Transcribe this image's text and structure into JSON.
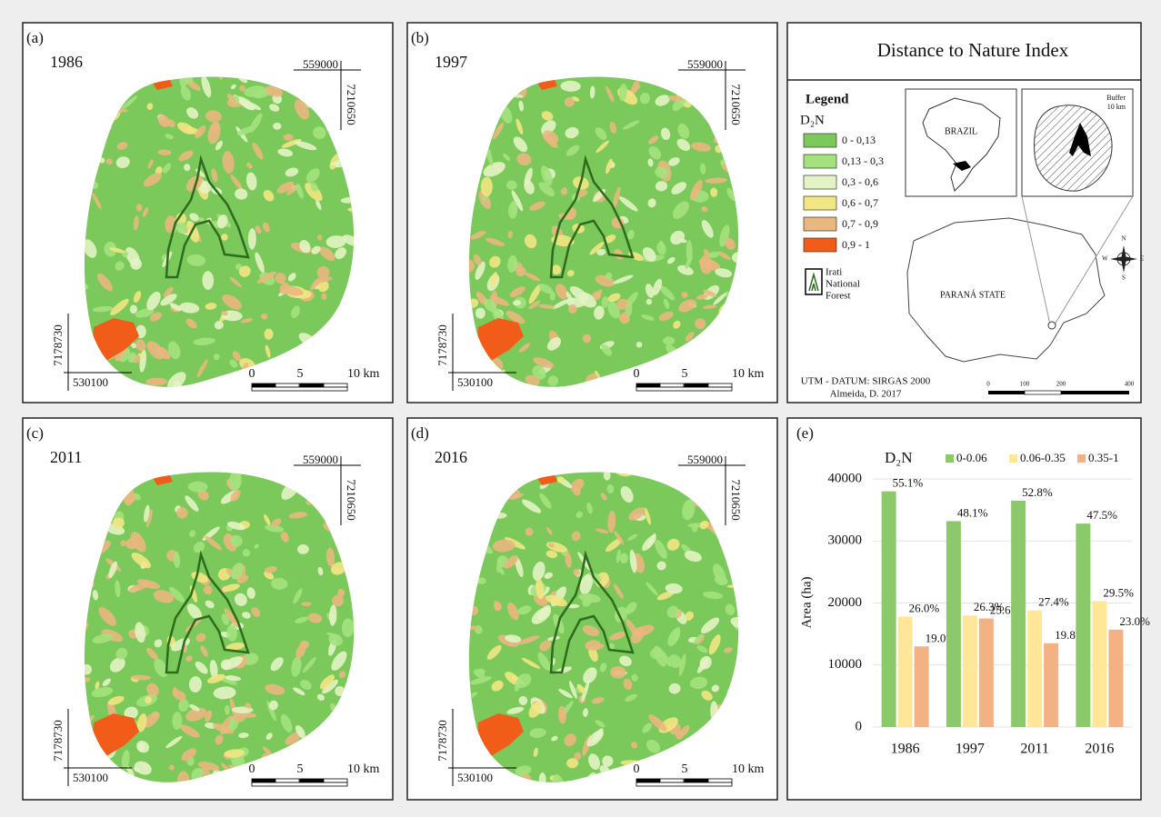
{
  "maps": [
    {
      "label": "(a)",
      "year": "1986",
      "east": "559000",
      "north": "7210650",
      "south": "7178730",
      "west": "530100",
      "scale": [
        "0",
        "5",
        "10 km"
      ]
    },
    {
      "label": "(b)",
      "year": "1997",
      "east": "559000",
      "north": "7210650",
      "south": "7178730",
      "west": "530100",
      "scale": [
        "0",
        "5",
        "10 km"
      ]
    },
    {
      "label": "(c)",
      "year": "2011",
      "east": "559000",
      "north": "7210650",
      "south": "7178730",
      "west": "530100",
      "scale": [
        "0",
        "5",
        "10 km"
      ]
    },
    {
      "label": "(d)",
      "year": "2016",
      "east": "559000",
      "north": "7210650",
      "south": "7178730",
      "west": "530100",
      "scale": [
        "0",
        "5",
        "10 km"
      ]
    }
  ],
  "legend_panel": {
    "title": "Distance to Nature Index",
    "legend_title": "Legend",
    "index_name": "D₂N",
    "classes": [
      {
        "label": "0 - 0,13",
        "color": "#7cc95b"
      },
      {
        "label": "0,13 - 0,3",
        "color": "#a4e27e"
      },
      {
        "label": "0,3 - 0,6",
        "color": "#e3f3c4"
      },
      {
        "label": "0,6 - 0,7",
        "color": "#f2e683"
      },
      {
        "label": "0,7 - 0,9",
        "color": "#eab77f"
      },
      {
        "label": "0,9 - 1",
        "color": "#f25c19"
      }
    ],
    "forest_label": [
      "Irati",
      "National",
      "Forest"
    ],
    "brazil": "BRAZIL",
    "buffer": [
      "Buffer",
      "10 km"
    ],
    "state": "PARANÁ STATE",
    "compass": [
      "N",
      "E",
      "S",
      "W"
    ],
    "scale": [
      "0",
      "100",
      "200",
      "400"
    ],
    "datum": "UTM - DATUM: SIRGAS 2000",
    "credit": "Almeida, D. 2017"
  },
  "chart_data": {
    "type": "bar",
    "label": "(e)",
    "legend_title": "D₂N",
    "y_label": "Area (ha)",
    "categories": [
      "1986",
      "1997",
      "2011",
      "2016"
    ],
    "series": [
      {
        "name": "0-0.06",
        "color": "#8cc96a",
        "values": [
          38000,
          33200,
          36500,
          32800
        ],
        "share_labels": [
          "55.1%",
          "48.1%",
          "52.8%",
          "47.5%"
        ]
      },
      {
        "name": "0.06-0.35",
        "color": "#ffe699",
        "values": [
          17800,
          18000,
          18800,
          20300
        ],
        "share_labels": [
          "26.0%",
          "26.3%",
          "27.4%",
          "29.5%"
        ]
      },
      {
        "name": "0.35-1",
        "color": "#f4b183",
        "values": [
          13000,
          17500,
          13500,
          15700
        ],
        "share_labels": [
          "19.0%",
          "25.6%",
          "19.8%",
          "23.0%"
        ]
      }
    ],
    "ylim": [
      0,
      40000
    ],
    "yticks": [
      0,
      10000,
      20000,
      30000,
      40000
    ],
    "grid": true
  }
}
